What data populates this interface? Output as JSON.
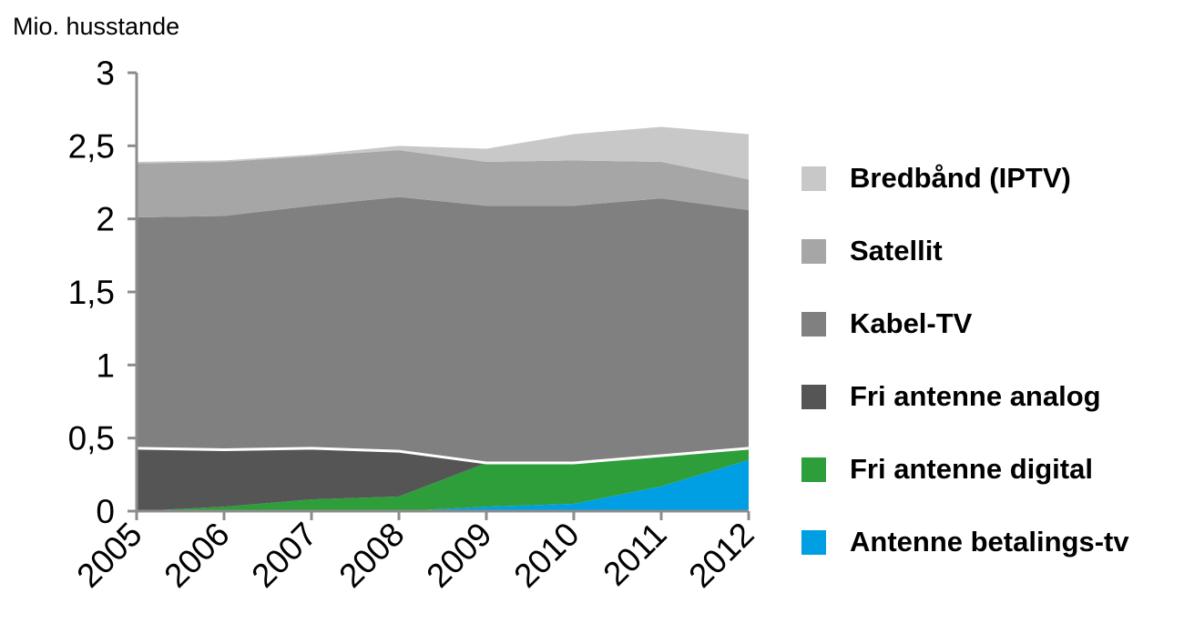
{
  "chart_data": {
    "type": "area",
    "stacked": true,
    "title": "",
    "xlabel": "",
    "ylabel": "Mio. husstande",
    "x": [
      "2005",
      "2006",
      "2007",
      "2008",
      "2009",
      "2010",
      "2011",
      "2012"
    ],
    "ylim": [
      0,
      3
    ],
    "yticks": [
      0,
      0.5,
      1,
      1.5,
      2,
      2.5,
      3
    ],
    "ytick_labels": [
      "0",
      "0,5",
      "1",
      "1,5",
      "2",
      "2,5",
      "3"
    ],
    "grid": false,
    "legend_position": "right",
    "series": [
      {
        "name": "Antenne betalings-tv",
        "color": "#009fe3",
        "values": [
          0,
          0,
          0,
          0,
          0.03,
          0.05,
          0.17,
          0.35
        ]
      },
      {
        "name": "Fri antenne digital",
        "color": "#2e9e3a",
        "values": [
          0,
          0.03,
          0.08,
          0.1,
          0.3,
          0.28,
          0.21,
          0.08
        ]
      },
      {
        "name": "Fri antenne analog",
        "color": "#555555",
        "values": [
          0.43,
          0.39,
          0.35,
          0.31,
          0,
          0,
          0,
          0
        ]
      },
      {
        "name": "Kabel-TV",
        "color": "#808080",
        "values": [
          1.58,
          1.6,
          1.66,
          1.74,
          1.76,
          1.76,
          1.76,
          1.63
        ]
      },
      {
        "name": "Satellit",
        "color": "#a6a6a6",
        "values": [
          0.37,
          0.37,
          0.34,
          0.32,
          0.3,
          0.31,
          0.25,
          0.21
        ]
      },
      {
        "name": "Bredbånd (IPTV)",
        "color": "#c8c8c8",
        "values": [
          0.01,
          0.01,
          0.01,
          0.03,
          0.09,
          0.18,
          0.24,
          0.31
        ]
      }
    ]
  }
}
